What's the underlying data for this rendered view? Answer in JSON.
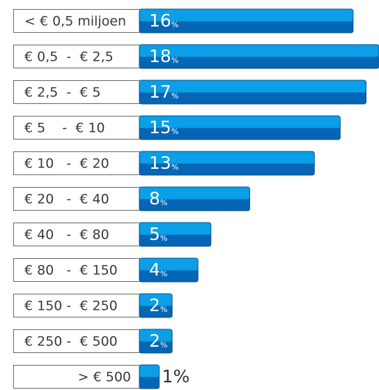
{
  "chart_data": {
    "type": "bar",
    "categories": [
      "< € 0,5 miljoen",
      "€ 0,5  -  € 2,5",
      "€ 2,5  -  € 5",
      "€ 5    -  € 10",
      "€ 10   -  € 20",
      "€ 20   -  € 40",
      "€ 40   -  € 80",
      "€ 80   -  € 150",
      "€ 150 -  € 250",
      "€ 250 -  € 500",
      "> € 500"
    ],
    "values": [
      16,
      18,
      17,
      15,
      13,
      8,
      5,
      4,
      2,
      2,
      1
    ],
    "value_labels": [
      "16%",
      "18%",
      "17%",
      "15%",
      "13%",
      "8%",
      "5%",
      "4%",
      "2%",
      "2%",
      "1%"
    ],
    "color": "#0a9fe6"
  }
}
